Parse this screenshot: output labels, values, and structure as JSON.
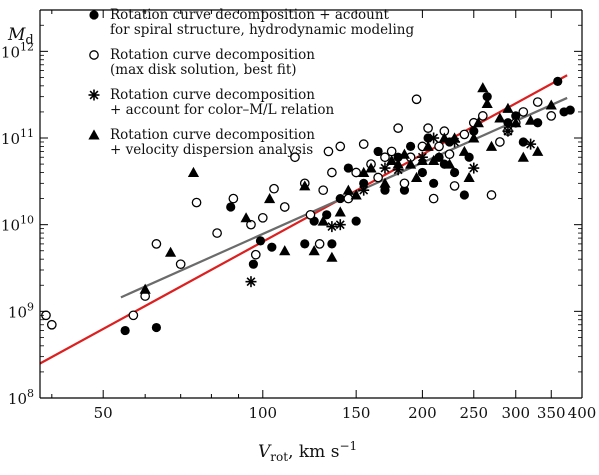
{
  "chart_data": {
    "type": "scatter",
    "xscale": "log",
    "yscale": "log",
    "xlim": [
      38,
      400
    ],
    "ylim": [
      100000000.0,
      3000000000000.0
    ],
    "xlabel": {
      "main": "V",
      "sub": "rot",
      "unit": ", km s",
      "exp": "−1"
    },
    "ylabel": {
      "main": "M",
      "sub": "d"
    },
    "x_ticks": [
      {
        "value": 50,
        "label": "50"
      },
      {
        "value": 100,
        "label": "100"
      },
      {
        "value": 150,
        "label": "150"
      },
      {
        "value": 200,
        "label": "200"
      },
      {
        "value": 250,
        "label": "250"
      },
      {
        "value": 300,
        "label": "300"
      },
      {
        "value": 350,
        "label": "350"
      },
      {
        "value": 400,
        "label": "400"
      }
    ],
    "y_ticks": [
      {
        "value": 100000000.0,
        "base": "10",
        "exp": "8"
      },
      {
        "value": 1000000000.0,
        "base": "10",
        "exp": "9"
      },
      {
        "value": 10000000000.0,
        "base": "10",
        "exp": "10"
      },
      {
        "value": 100000000000.0,
        "base": "10",
        "exp": "11"
      },
      {
        "value": 1000000000000.0,
        "base": "10",
        "exp": "12"
      }
    ],
    "legend_position": "top",
    "lines": [
      {
        "color": "#dd1f1f",
        "points": [
          [
            38,
            250000000.0
          ],
          [
            375,
            530000000000.0
          ]
        ]
      },
      {
        "color": "#6b6b6b",
        "points": [
          [
            54,
            1450000000.0
          ],
          [
            375,
            290000000000.0
          ]
        ]
      }
    ],
    "series": [
      {
        "name": "Rotation curve decomposition + account for spiral structure, hydrodynamic modeling",
        "label_lines": [
          "Rotation curve decomposition  + account",
          "for spiral structure, hydrodynamic modeling"
        ],
        "marker": "filled-circle",
        "points": [
          [
            55,
            600000000.0
          ],
          [
            63,
            650000000.0
          ],
          [
            87,
            16000000000.0
          ],
          [
            96,
            3500000000.0
          ],
          [
            99,
            6500000000.0
          ],
          [
            104,
            5500000000.0
          ],
          [
            110,
            16000000000.0
          ],
          [
            120,
            6000000000.0
          ],
          [
            125,
            11000000000.0
          ],
          [
            132,
            13000000000.0
          ],
          [
            135,
            6000000000.0
          ],
          [
            140,
            20000000000.0
          ],
          [
            145,
            45000000000.0
          ],
          [
            150,
            11000000000.0
          ],
          [
            155,
            30000000000.0
          ],
          [
            160,
            50000000000.0
          ],
          [
            165,
            70000000000.0
          ],
          [
            170,
            25000000000.0
          ],
          [
            180,
            60000000000.0
          ],
          [
            185,
            25000000000.0
          ],
          [
            190,
            80000000000.0
          ],
          [
            200,
            40000000000.0
          ],
          [
            205,
            100000000000.0
          ],
          [
            210,
            30000000000.0
          ],
          [
            215,
            60000000000.0
          ],
          [
            220,
            50000000000.0
          ],
          [
            225,
            90000000000.0
          ],
          [
            230,
            40000000000.0
          ],
          [
            240,
            22000000000.0
          ],
          [
            245,
            60000000000.0
          ],
          [
            250,
            120000000000.0
          ],
          [
            265,
            300000000000.0
          ],
          [
            290,
            150000000000.0
          ],
          [
            300,
            180000000000.0
          ],
          [
            310,
            90000000000.0
          ],
          [
            330,
            150000000000.0
          ],
          [
            360,
            450000000000.0
          ],
          [
            370,
            200000000000.0
          ],
          [
            380,
            210000000000.0
          ]
        ]
      },
      {
        "name": "Rotation curve decomposition (max disk solution, best fit)",
        "label_lines": [
          "Rotation curve decomposition",
          "(max disk solution, best fit)"
        ],
        "marker": "open-circle",
        "points": [
          [
            39,
            900000000.0
          ],
          [
            40,
            700000000.0
          ],
          [
            57,
            900000000.0
          ],
          [
            60,
            1500000000.0
          ],
          [
            63,
            6000000000.0
          ],
          [
            70,
            3500000000.0
          ],
          [
            75,
            18000000000.0
          ],
          [
            82,
            8000000000.0
          ],
          [
            88,
            20000000000.0
          ],
          [
            95,
            10000000000.0
          ],
          [
            97,
            4500000000.0
          ],
          [
            100,
            12000000000.0
          ],
          [
            105,
            26000000000.0
          ],
          [
            110,
            16000000000.0
          ],
          [
            115,
            60000000000.0
          ],
          [
            120,
            30000000000.0
          ],
          [
            123,
            13000000000.0
          ],
          [
            128,
            6000000000.0
          ],
          [
            130,
            25000000000.0
          ],
          [
            133,
            70000000000.0
          ],
          [
            135,
            40000000000.0
          ],
          [
            140,
            80000000000.0
          ],
          [
            145,
            20000000000.0
          ],
          [
            150,
            40000000000.0
          ],
          [
            155,
            85000000000.0
          ],
          [
            160,
            50000000000.0
          ],
          [
            165,
            35000000000.0
          ],
          [
            170,
            60000000000.0
          ],
          [
            175,
            70000000000.0
          ],
          [
            180,
            130000000000.0
          ],
          [
            185,
            30000000000.0
          ],
          [
            190,
            60000000000.0
          ],
          [
            195,
            280000000000.0
          ],
          [
            200,
            80000000000.0
          ],
          [
            205,
            130000000000.0
          ],
          [
            210,
            20000000000.0
          ],
          [
            215,
            80000000000.0
          ],
          [
            220,
            120000000000.0
          ],
          [
            225,
            65000000000.0
          ],
          [
            230,
            28000000000.0
          ],
          [
            240,
            110000000000.0
          ],
          [
            250,
            150000000000.0
          ],
          [
            260,
            180000000000.0
          ],
          [
            270,
            22000000000.0
          ],
          [
            280,
            90000000000.0
          ],
          [
            290,
            120000000000.0
          ],
          [
            300,
            150000000000.0
          ],
          [
            310,
            200000000000.0
          ],
          [
            330,
            260000000000.0
          ],
          [
            350,
            180000000000.0
          ]
        ]
      },
      {
        "name": "Rotation curve decomposition + account for color–M/L relation",
        "label_lines": [
          "Rotation curve decomposition",
          "+ account for color–M/L relation"
        ],
        "marker": "asterisk",
        "points": [
          [
            95,
            2200000000.0
          ],
          [
            135,
            9500000000.0
          ],
          [
            140,
            10000000000.0
          ],
          [
            155,
            25000000000.0
          ],
          [
            170,
            45000000000.0
          ],
          [
            180,
            43000000000.0
          ],
          [
            200,
            60000000000.0
          ],
          [
            210,
            100000000000.0
          ],
          [
            230,
            90000000000.0
          ],
          [
            250,
            45000000000.0
          ],
          [
            290,
            120000000000.0
          ],
          [
            320,
            85000000000.0
          ]
        ]
      },
      {
        "name": "Rotation curve decomposition + velocity dispersion analysis",
        "label_lines": [
          "Rotation curve decomposition",
          "+ velocity dispersion analysis"
        ],
        "marker": "filled-triangle",
        "points": [
          [
            60,
            1800000000.0
          ],
          [
            67,
            4800000000.0
          ],
          [
            74,
            40000000000.0
          ],
          [
            93,
            12000000000.0
          ],
          [
            103,
            20000000000.0
          ],
          [
            110,
            5000000000.0
          ],
          [
            120,
            28000000000.0
          ],
          [
            125,
            5000000000.0
          ],
          [
            130,
            11000000000.0
          ],
          [
            135,
            4200000000.0
          ],
          [
            140,
            14000000000.0
          ],
          [
            145,
            25000000000.0
          ],
          [
            150,
            22000000000.0
          ],
          [
            155,
            40000000000.0
          ],
          [
            160,
            45000000000.0
          ],
          [
            170,
            30000000000.0
          ],
          [
            175,
            55000000000.0
          ],
          [
            180,
            50000000000.0
          ],
          [
            185,
            65000000000.0
          ],
          [
            190,
            50000000000.0
          ],
          [
            195,
            35000000000.0
          ],
          [
            200,
            55000000000.0
          ],
          [
            205,
            80000000000.0
          ],
          [
            210,
            55000000000.0
          ],
          [
            215,
            60000000000.0
          ],
          [
            220,
            100000000000.0
          ],
          [
            225,
            50000000000.0
          ],
          [
            230,
            100000000000.0
          ],
          [
            240,
            70000000000.0
          ],
          [
            245,
            35000000000.0
          ],
          [
            250,
            100000000000.0
          ],
          [
            255,
            150000000000.0
          ],
          [
            260,
            380000000000.0
          ],
          [
            265,
            250000000000.0
          ],
          [
            270,
            80000000000.0
          ],
          [
            280,
            170000000000.0
          ],
          [
            290,
            220000000000.0
          ],
          [
            300,
            150000000000.0
          ],
          [
            310,
            60000000000.0
          ],
          [
            320,
            160000000000.0
          ],
          [
            330,
            70000000000.0
          ],
          [
            350,
            240000000000.0
          ]
        ]
      }
    ]
  }
}
